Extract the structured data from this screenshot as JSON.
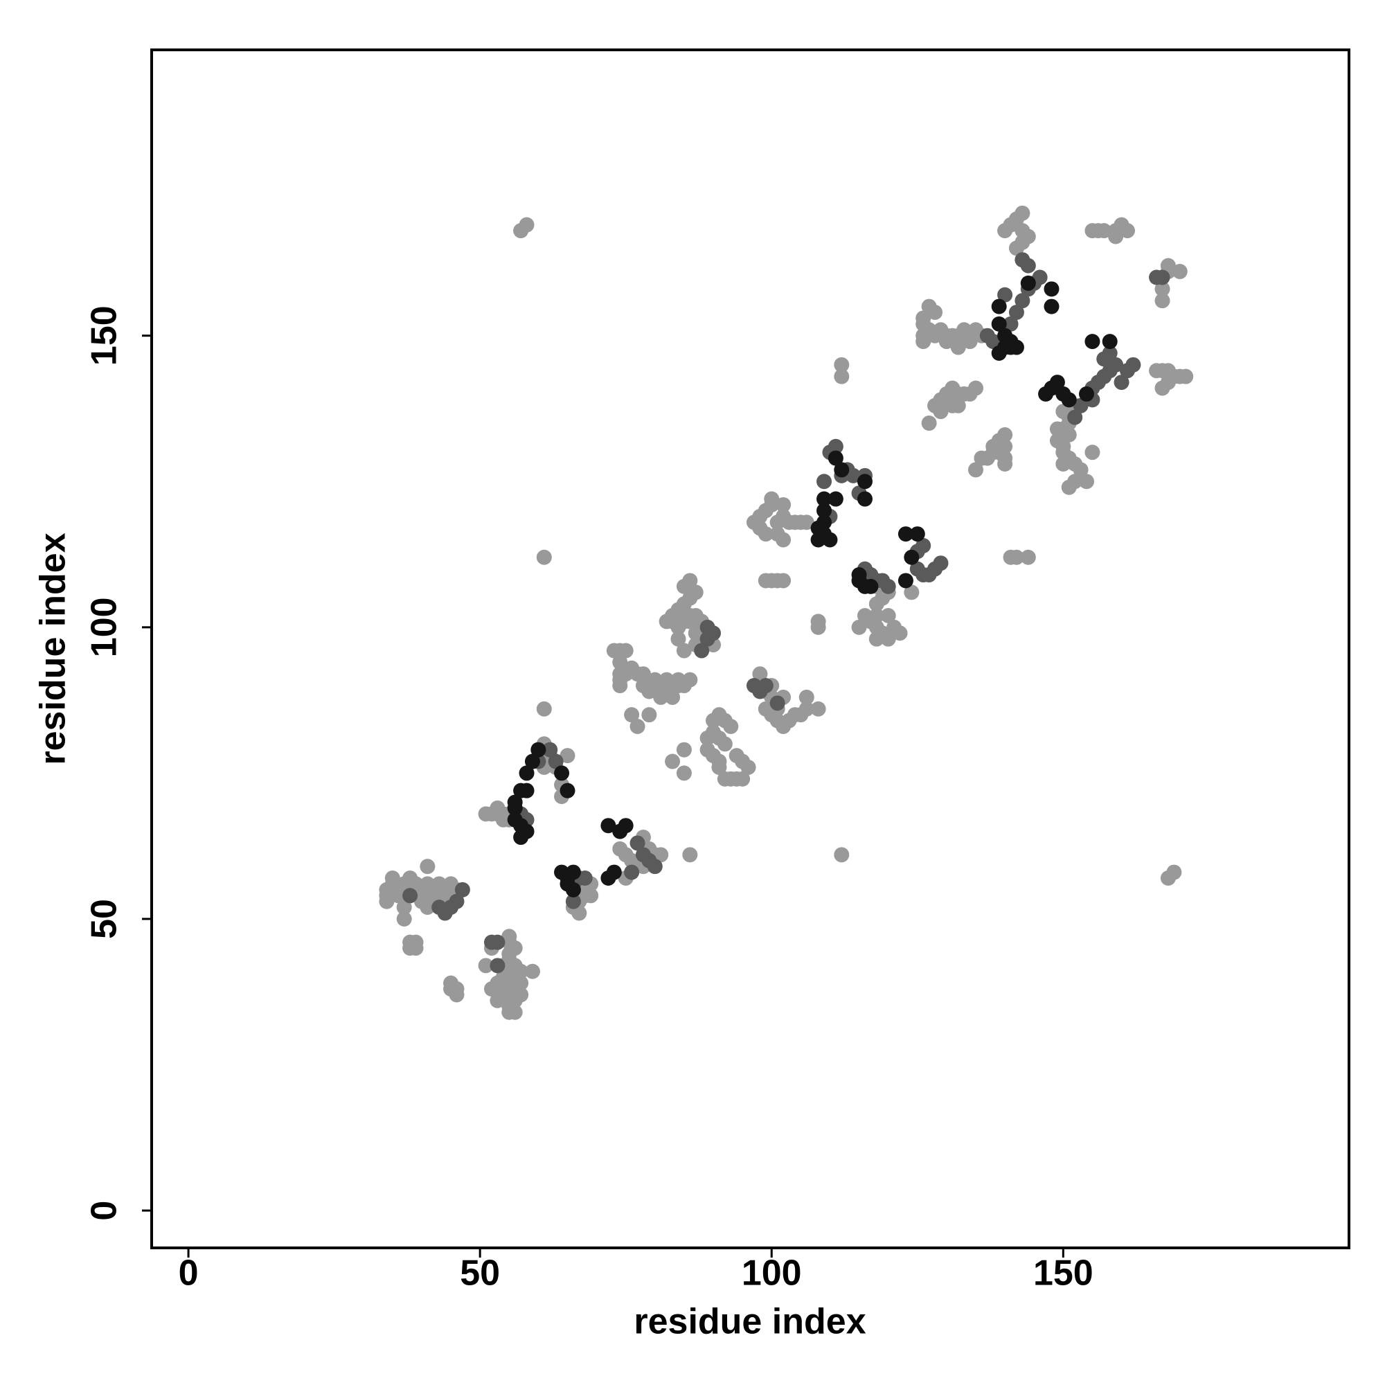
{
  "chart_data": {
    "type": "scatter",
    "x_label": "residue index",
    "y_label": "residue index",
    "xlim": [
      -6.3,
      199
    ],
    "ylim": [
      -6.4,
      199
    ],
    "xticks": [
      0,
      50,
      100,
      150
    ],
    "yticks": [
      0,
      50,
      100,
      150
    ],
    "series": [
      {
        "color": "#999999",
        "x": [
          34,
          35,
          36,
          37,
          38,
          39,
          40,
          41,
          42,
          43,
          44,
          45,
          46,
          34,
          36,
          38,
          40,
          42,
          44,
          35,
          37,
          39,
          41,
          43,
          45,
          34,
          40,
          37,
          41,
          37,
          35,
          38,
          41,
          38,
          39,
          38,
          39,
          45,
          46,
          45,
          46,
          55,
          55,
          55,
          55,
          55,
          55,
          55,
          55,
          55,
          55,
          55,
          55,
          56,
          56,
          56,
          56,
          56,
          57,
          57,
          57,
          54,
          54,
          54,
          53,
          53,
          52,
          51,
          52,
          59,
          55,
          56,
          51,
          52,
          53,
          54,
          55,
          53,
          54,
          55,
          60,
          61,
          62,
          63,
          64,
          61,
          64,
          66,
          67,
          67,
          68,
          68,
          69,
          69,
          74,
          75,
          76,
          78,
          80,
          81,
          79,
          78,
          75,
          78,
          79,
          80,
          81,
          82,
          83,
          84,
          85,
          80,
          82,
          84,
          86,
          79,
          81,
          83,
          74,
          74,
          74,
          74,
          75,
          73,
          74,
          75,
          76,
          77,
          78,
          76,
          77,
          79,
          81,
          82,
          83,
          84,
          85,
          86,
          87,
          86,
          85,
          83,
          84,
          85,
          86,
          87,
          88,
          87,
          84,
          88,
          87,
          90,
          85,
          86,
          90,
          91,
          92,
          93,
          90,
          89,
          89,
          90,
          91,
          91,
          92,
          93,
          94,
          95,
          96,
          95,
          94,
          92,
          91,
          83,
          85,
          85,
          98,
          99,
          100,
          99,
          100,
          101,
          102,
          103,
          104,
          105,
          106,
          106,
          108,
          101,
          102,
          100,
          97,
          98,
          99,
          100,
          101,
          102,
          103,
          104,
          105,
          106,
          98,
          99,
          101,
          102,
          100,
          102,
          99,
          100,
          101,
          102,
          108,
          108,
          112,
          112,
          118,
          118,
          118,
          119,
          120,
          121,
          122,
          120,
          118,
          117,
          119,
          120,
          115,
          116,
          118,
          124,
          126,
          127,
          128,
          129,
          130,
          131,
          132,
          133,
          134,
          135,
          136,
          127,
          128,
          126,
          126,
          126,
          130,
          132,
          134,
          128,
          129,
          130,
          131,
          132,
          133,
          134,
          135,
          129,
          131,
          132,
          127,
          138,
          139,
          140,
          139,
          140,
          140,
          138,
          137,
          135,
          136,
          140,
          150,
          151,
          151,
          150,
          151,
          150,
          150,
          151,
          152,
          153,
          152,
          154,
          151,
          155,
          152,
          149,
          149,
          150,
          140,
          141,
          142,
          143,
          143,
          144,
          143,
          142,
          155,
          156,
          157,
          159,
          160,
          161,
          159,
          166,
          167,
          168,
          169,
          170,
          171,
          168,
          167,
          170,
          168,
          167,
          167,
          168,
          57,
          58,
          61,
          61,
          86,
          112,
          141,
          142,
          144,
          168,
          169,
          65
        ],
        "values": [
          55,
          55,
          55,
          55,
          55,
          55,
          55,
          55,
          55,
          55,
          55,
          55,
          55,
          54,
          54,
          54,
          54,
          54,
          54,
          56,
          56,
          56,
          56,
          56,
          56,
          53,
          53,
          52,
          52,
          50,
          57,
          57,
          59,
          46,
          46,
          45,
          45,
          38,
          38,
          39,
          37,
          34,
          35,
          36,
          37,
          38,
          39,
          40,
          41,
          42,
          43,
          44,
          46,
          34,
          36,
          38,
          40,
          42,
          37,
          39,
          41,
          38,
          40,
          42,
          36,
          39,
          38,
          42,
          45,
          41,
          47,
          45,
          68,
          68,
          68,
          68,
          68,
          69,
          67,
          67,
          79,
          80,
          78,
          76,
          73,
          76,
          71,
          52,
          51,
          53,
          54,
          55,
          56,
          54,
          62,
          61,
          60,
          64,
          61,
          61,
          62,
          59,
          57,
          90,
          90,
          90,
          90,
          90,
          90,
          90,
          90,
          91,
          91,
          91,
          91,
          89,
          89,
          88,
          94,
          92,
          91,
          90,
          96,
          96,
          96,
          92,
          93,
          92,
          92,
          85,
          83,
          85,
          88,
          101,
          102,
          103,
          104,
          105,
          106,
          108,
          107,
          101,
          100,
          101,
          101,
          102,
          101,
          99,
          98,
          98,
          97,
          97,
          96,
          102,
          84,
          85,
          84,
          83,
          82,
          81,
          79,
          78,
          77,
          76,
          74,
          74,
          74,
          74,
          76,
          77,
          78,
          80,
          81,
          77,
          75,
          79,
          92,
          89,
          88,
          86,
          85,
          84,
          83,
          84,
          85,
          85,
          86,
          88,
          86,
          86,
          88,
          90,
          118,
          119,
          120,
          121,
          118,
          119,
          118,
          118,
          118,
          118,
          117,
          116,
          116,
          115,
          122,
          121,
          108,
          108,
          108,
          108,
          101,
          100,
          145,
          143,
          104,
          102,
          100,
          99,
          98,
          100,
          99,
          102,
          98,
          101,
          105,
          106,
          100,
          102,
          107,
          106,
          150,
          151,
          150,
          151,
          150,
          150,
          150,
          151,
          150,
          151,
          150,
          155,
          154,
          153,
          152,
          149,
          149,
          148,
          149,
          138,
          139,
          140,
          141,
          140,
          140,
          140,
          141,
          137,
          138,
          138,
          135,
          131,
          132,
          133,
          130,
          129,
          128,
          130,
          129,
          127,
          129,
          131,
          137,
          136,
          135,
          134,
          133,
          131,
          130,
          129,
          128,
          127,
          125,
          125,
          124,
          130,
          138,
          134,
          132,
          128,
          168,
          169,
          170,
          171,
          168,
          167,
          166,
          165,
          168,
          168,
          168,
          168,
          169,
          168,
          167,
          144,
          144,
          144,
          143,
          143,
          143,
          142,
          141,
          161,
          162,
          158,
          156,
          161,
          168,
          169,
          112,
          86,
          61,
          61,
          112,
          112,
          112,
          57,
          58,
          78
        ]
      },
      {
        "color": "#5a5a5a",
        "x": [
          45,
          46,
          43,
          44,
          47,
          38,
          52,
          53,
          53,
          62,
          60,
          63,
          57,
          58,
          66,
          67,
          68,
          66,
          77,
          78,
          79,
          80,
          76,
          89,
          89,
          90,
          88,
          97,
          98,
          99,
          101,
          109,
          110,
          111,
          112,
          113,
          114,
          116,
          115,
          110,
          116,
          117,
          118,
          119,
          120,
          125,
          126,
          127,
          128,
          129,
          125,
          126,
          141,
          142,
          143,
          144,
          145,
          146,
          144,
          143,
          140,
          137,
          138,
          156,
          157,
          158,
          159,
          160,
          161,
          162,
          157,
          158,
          155,
          155,
          153,
          152,
          166,
          167
        ],
        "values": [
          52,
          53,
          52,
          51,
          55,
          54,
          46,
          46,
          42,
          79,
          77,
          77,
          68,
          67,
          56,
          57,
          57,
          53,
          63,
          61,
          60,
          59,
          58,
          100,
          98,
          99,
          96,
          90,
          89,
          90,
          87,
          125,
          130,
          131,
          126,
          127,
          126,
          126,
          123,
          119,
          110,
          109,
          108,
          108,
          107,
          110,
          109,
          109,
          110,
          111,
          113,
          114,
          152,
          154,
          156,
          158,
          159,
          160,
          162,
          163,
          157,
          150,
          149,
          142,
          143,
          144,
          145,
          142,
          144,
          145,
          146,
          147,
          141,
          139,
          138,
          136,
          160,
          160
        ]
      },
      {
        "color": "#151515",
        "x": [
          56,
          57,
          58,
          57,
          56,
          56,
          57,
          58,
          59,
          60,
          64,
          65,
          58,
          64,
          65,
          66,
          65,
          66,
          72,
          73,
          72,
          74,
          75,
          108,
          109,
          110,
          108,
          109,
          109,
          109,
          111,
          112,
          111,
          116,
          116,
          115,
          116,
          115,
          117,
          123,
          123,
          125,
          124,
          139,
          140,
          141,
          140,
          139,
          139,
          141,
          142,
          148,
          148,
          148,
          149,
          147,
          150,
          151,
          154,
          155,
          158,
          144
        ],
        "values": [
          67,
          66,
          65,
          64,
          69,
          70,
          72,
          75,
          77,
          79,
          75,
          72,
          72,
          58,
          57,
          58,
          56,
          55,
          57,
          58,
          66,
          65,
          66,
          117,
          116,
          115,
          115,
          118,
          120,
          122,
          122,
          127,
          129,
          122,
          125,
          108,
          107,
          109,
          107,
          108,
          116,
          116,
          112,
          147,
          148,
          149,
          150,
          152,
          155,
          148,
          148,
          155,
          158,
          141,
          142,
          140,
          140,
          139,
          140,
          149,
          149,
          159
        ]
      }
    ]
  }
}
